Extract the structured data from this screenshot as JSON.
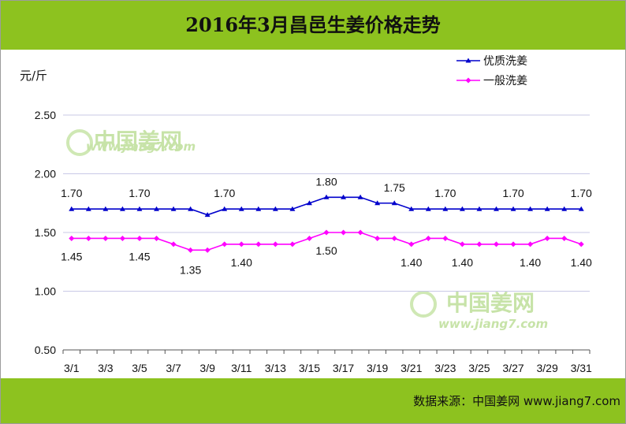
{
  "chart_data": {
    "type": "line",
    "title": "2016年3月昌邑生姜价格走势",
    "ylabel": "元/斤",
    "ylim": [
      0.5,
      2.5
    ],
    "yticks": [
      "2.50",
      "2.00",
      "1.50",
      "1.00",
      "0.50"
    ],
    "ytick_values": [
      2.5,
      2.0,
      1.5,
      1.0,
      0.5
    ],
    "x": [
      "3/1",
      "3/2",
      "3/3",
      "3/4",
      "3/5",
      "3/6",
      "3/7",
      "3/8",
      "3/9",
      "3/10",
      "3/11",
      "3/12",
      "3/13",
      "3/14",
      "3/15",
      "3/16",
      "3/17",
      "3/18",
      "3/19",
      "3/20",
      "3/21",
      "3/22",
      "3/23",
      "3/24",
      "3/25",
      "3/26",
      "3/27",
      "3/28",
      "3/29",
      "3/30",
      "3/31"
    ],
    "xtick_labels": [
      "3/1",
      "3/3",
      "3/5",
      "3/7",
      "3/9",
      "3/11",
      "3/13",
      "3/15",
      "3/17",
      "3/19",
      "3/21",
      "3/23",
      "3/25",
      "3/27",
      "3/29",
      "3/31"
    ],
    "grid": true,
    "legend_position": "top-right",
    "series": [
      {
        "name": "优质洗姜",
        "color": "#0000cc",
        "marker": "triangle",
        "values": [
          1.7,
          1.7,
          1.7,
          1.7,
          1.7,
          1.7,
          1.7,
          1.7,
          1.65,
          1.7,
          1.7,
          1.7,
          1.7,
          1.7,
          1.75,
          1.8,
          1.8,
          1.8,
          1.75,
          1.75,
          1.7,
          1.7,
          1.7,
          1.7,
          1.7,
          1.7,
          1.7,
          1.7,
          1.7,
          1.7,
          1.7
        ],
        "data_labels": [
          {
            "index": 0,
            "text": "1.70"
          },
          {
            "index": 4,
            "text": "1.70"
          },
          {
            "index": 9,
            "text": "1.70"
          },
          {
            "index": 15,
            "text": "1.80"
          },
          {
            "index": 19,
            "text": "1.75"
          },
          {
            "index": 22,
            "text": "1.70"
          },
          {
            "index": 26,
            "text": "1.70"
          },
          {
            "index": 30,
            "text": "1.70"
          }
        ]
      },
      {
        "name": "一般洗姜",
        "color": "#ff00ff",
        "marker": "diamond",
        "values": [
          1.45,
          1.45,
          1.45,
          1.45,
          1.45,
          1.45,
          1.4,
          1.35,
          1.35,
          1.4,
          1.4,
          1.4,
          1.4,
          1.4,
          1.45,
          1.5,
          1.5,
          1.5,
          1.45,
          1.45,
          1.4,
          1.45,
          1.45,
          1.4,
          1.4,
          1.4,
          1.4,
          1.4,
          1.45,
          1.45,
          1.4
        ],
        "data_labels": [
          {
            "index": 0,
            "text": "1.45"
          },
          {
            "index": 4,
            "text": "1.45"
          },
          {
            "index": 7,
            "text": "1.35"
          },
          {
            "index": 10,
            "text": "1.40"
          },
          {
            "index": 15,
            "text": "1.50"
          },
          {
            "index": 20,
            "text": "1.40"
          },
          {
            "index": 23,
            "text": "1.40"
          },
          {
            "index": 27,
            "text": "1.40"
          },
          {
            "index": 30,
            "text": "1.40"
          }
        ]
      }
    ]
  },
  "watermark": {
    "brand": "中国姜网",
    "url": "www.jiang7.com"
  },
  "source": "数据来源：中国姜网 www.jiang7.com"
}
